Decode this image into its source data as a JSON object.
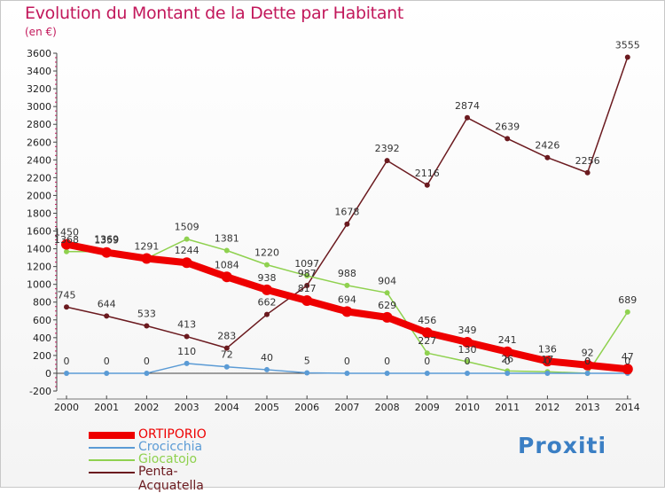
{
  "title": "Evolution du Montant de la Dette par Habitant",
  "subtitle": "(en €)",
  "logo": "Proxiti",
  "chart_data": {
    "type": "line",
    "x": [
      "2000",
      "2001",
      "2002",
      "2003",
      "2004",
      "2005",
      "2006",
      "2007",
      "2008",
      "2009",
      "2010",
      "2011",
      "2012",
      "2013",
      "2014"
    ],
    "ylim": [
      -200,
      3600
    ],
    "yticks": [
      -200,
      0,
      200,
      400,
      600,
      800,
      1000,
      1200,
      1400,
      1600,
      1800,
      2000,
      2200,
      2400,
      2600,
      2800,
      3000,
      3200,
      3400,
      3600
    ],
    "grid": false,
    "legend_position": "bottom-left",
    "series": [
      {
        "name": "Penta-Acquatella",
        "color": "#6b1a1f",
        "width": 1.5,
        "values": [
          745,
          644,
          533,
          413,
          283,
          662,
          987,
          1678,
          2392,
          2116,
          2874,
          2639,
          2426,
          2256,
          3555
        ],
        "labels": [
          "745",
          "644",
          "533",
          "413",
          "283",
          "662",
          "987",
          "1678",
          "2392",
          "2116",
          "2874",
          "2639",
          "2426",
          "2256",
          "3555"
        ]
      },
      {
        "name": "Giocatojo",
        "color": "#8fd14f",
        "width": 1.5,
        "values": [
          1368,
          1369,
          1291,
          1509,
          1381,
          1220,
          1097,
          988,
          904,
          227,
          130,
          26,
          17,
          0,
          689
        ],
        "labels": [
          "1368",
          "1369",
          "",
          "1509",
          "1381",
          "1220",
          "1097",
          "988",
          "904",
          "227",
          "130",
          "26",
          "17",
          "0",
          "689"
        ]
      },
      {
        "name": "Crocicchia",
        "color": "#5b9bd5",
        "width": 1.5,
        "values": [
          0,
          0,
          0,
          110,
          72,
          40,
          5,
          0,
          0,
          0,
          0,
          0,
          0,
          0,
          0
        ],
        "labels": [
          "0",
          "0",
          "0",
          "110",
          "72",
          "40",
          "5",
          "0",
          "0",
          "0",
          "0",
          "0",
          "0",
          "0",
          "0"
        ]
      },
      {
        "name": "ORTIPORIO",
        "color": "#ee0000",
        "width": 8,
        "values": [
          1450,
          1359,
          1291,
          1244,
          1084,
          938,
          817,
          694,
          629,
          456,
          349,
          241,
          136,
          92,
          47
        ],
        "labels": [
          "1450",
          "1359",
          "1291",
          "1244",
          "1084",
          "938",
          "817",
          "694",
          "629",
          "456",
          "349",
          "241",
          "136",
          "92",
          "47"
        ]
      }
    ]
  },
  "legend": [
    {
      "name": "ORTIPORIO",
      "color": "#ee0000",
      "thickness": 8
    },
    {
      "name": "Crocicchia",
      "color": "#5b9bd5",
      "thickness": 2
    },
    {
      "name": "Giocatojo",
      "color": "#8fd14f",
      "thickness": 2
    },
    {
      "name": "Penta-Acquatella",
      "color": "#6b1a1f",
      "thickness": 2
    }
  ]
}
